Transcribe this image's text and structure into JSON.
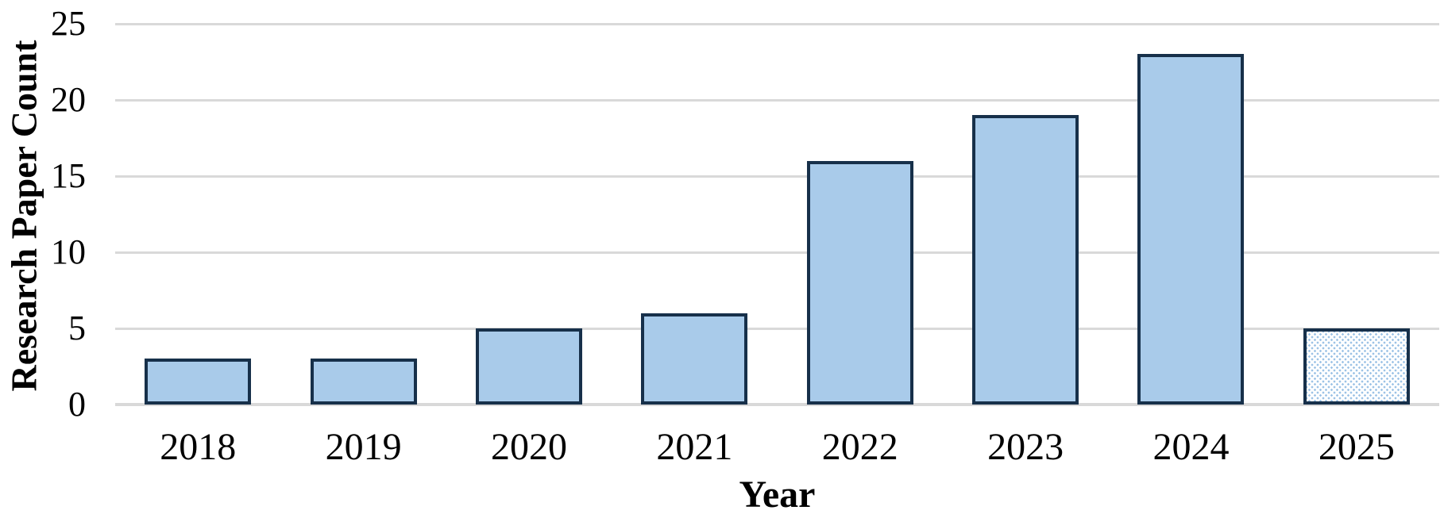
{
  "chart_data": {
    "type": "bar",
    "categories": [
      "2018",
      "2019",
      "2020",
      "2021",
      "2022",
      "2023",
      "2024",
      "2025"
    ],
    "values": [
      3,
      3,
      5,
      6,
      16,
      19,
      23,
      5
    ],
    "title": "",
    "xlabel": "Year",
    "ylabel": "Research Paper Count",
    "ylim": [
      0,
      25
    ],
    "yticks": [
      0,
      5,
      10,
      15,
      20,
      25
    ],
    "grid": "horizontal-only",
    "legend_position": "none",
    "bar_styles": [
      "solid",
      "solid",
      "solid",
      "solid",
      "solid",
      "solid",
      "solid",
      "dotted-pattern"
    ],
    "colors": {
      "bar_fill": "#a9cbea",
      "bar_border": "#17304a",
      "pattern_dot": "#9dc3e6",
      "gridline": "#d9d9d9",
      "text": "#000000",
      "background": "#ffffff"
    }
  }
}
